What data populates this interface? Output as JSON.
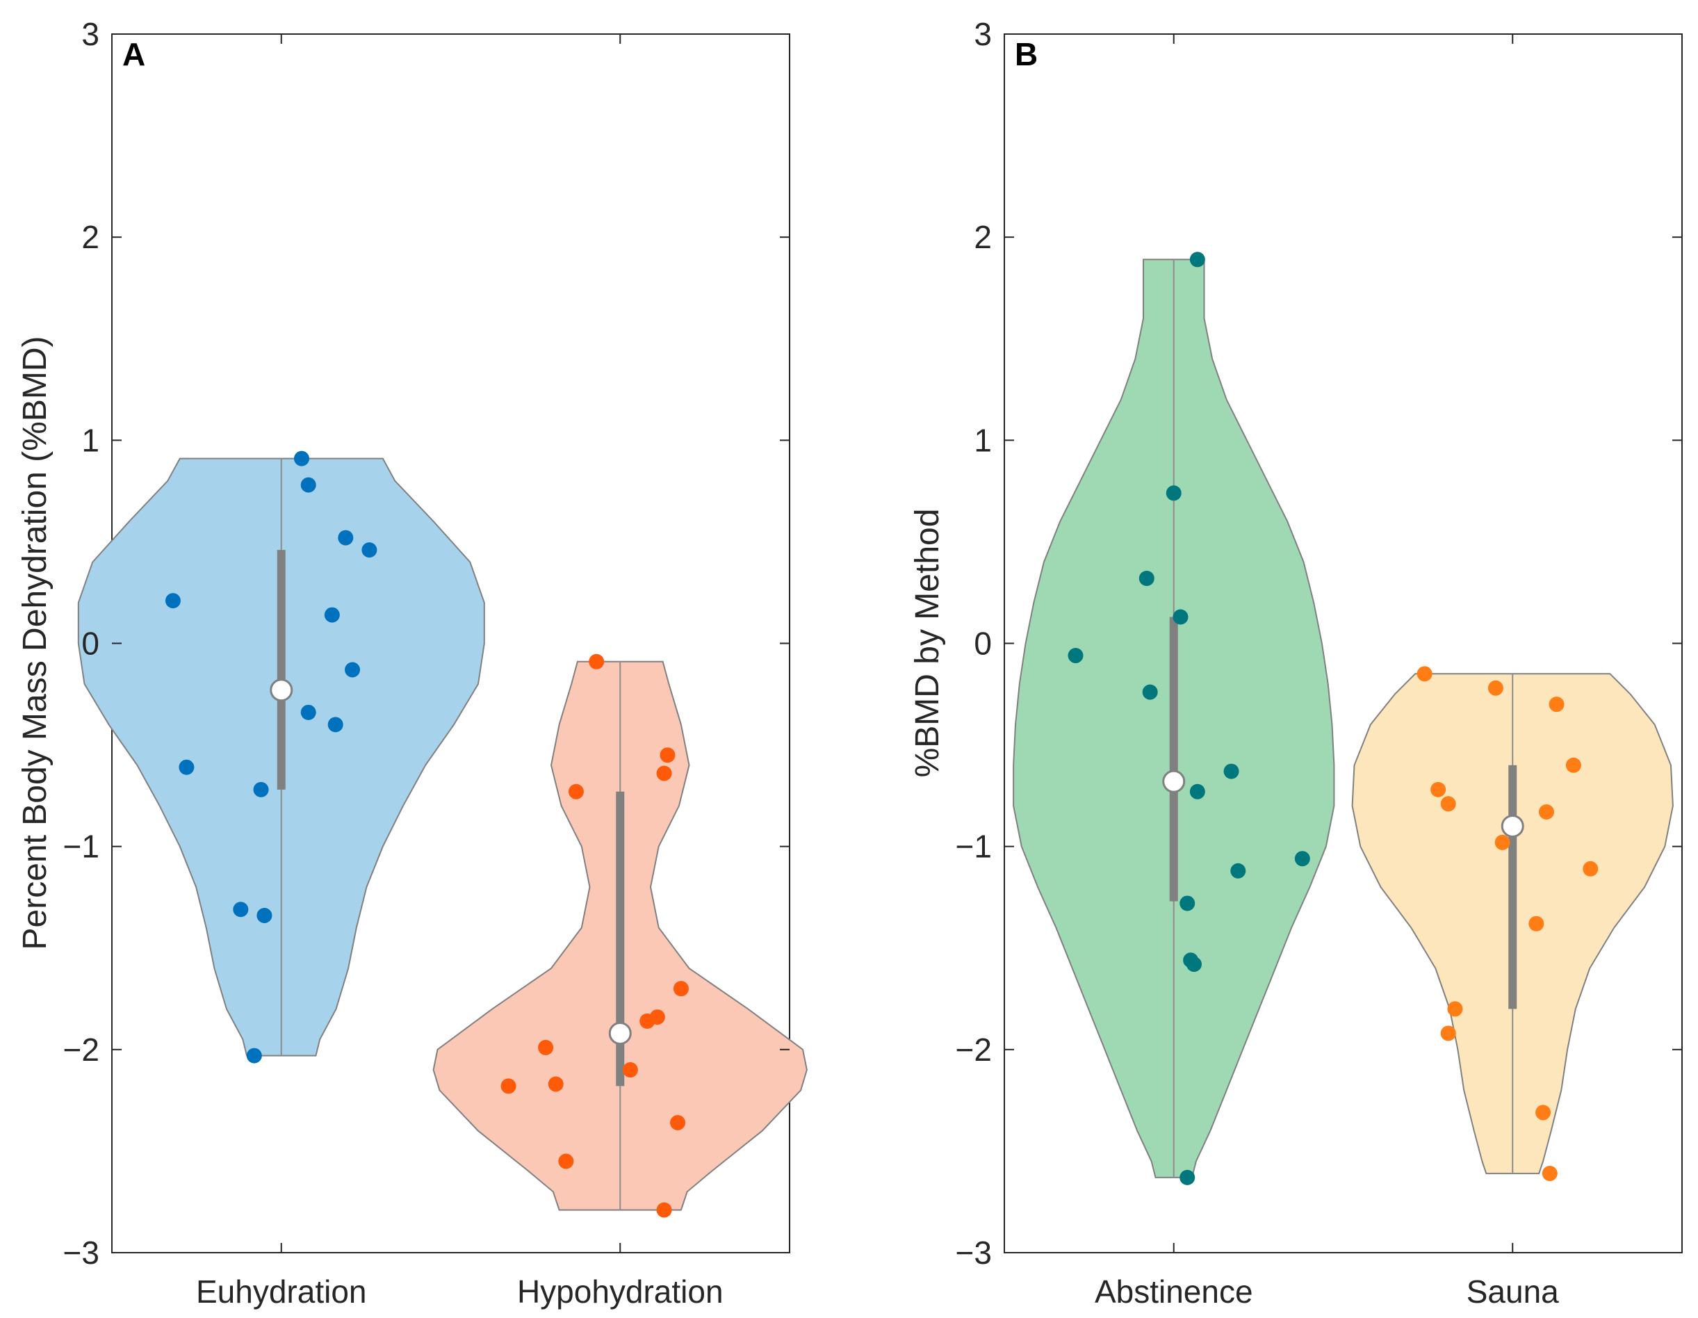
{
  "chart_data": [
    {
      "type": "violin",
      "panel_label": "A",
      "ylabel": "Percent Body Mass Dehydration (%BMD)",
      "xlabel": "",
      "ylim": [
        -3,
        3
      ],
      "yticks": [
        -3,
        -2,
        -1,
        0,
        1,
        2,
        3
      ],
      "ytick_labels": [
        "−3",
        "−2",
        "−1",
        "0",
        "1",
        "2",
        "3"
      ],
      "categories": [
        "Euhydration",
        "Hypohydration"
      ],
      "series": [
        {
          "name": "Euhydration",
          "fill": "#a6d2ec",
          "point_color": "#0072bd",
          "median": -0.23,
          "q1": -0.72,
          "q3": 0.46,
          "min": -2.03,
          "max": 0.91,
          "density": [
            [
              0.91,
              0.5
            ],
            [
              0.8,
              0.56
            ],
            [
              0.6,
              0.75
            ],
            [
              0.4,
              0.93
            ],
            [
              0.2,
              1.0
            ],
            [
              0.0,
              1.0
            ],
            [
              -0.2,
              0.97
            ],
            [
              -0.4,
              0.85
            ],
            [
              -0.6,
              0.71
            ],
            [
              -0.8,
              0.6
            ],
            [
              -1.0,
              0.5
            ],
            [
              -1.2,
              0.42
            ],
            [
              -1.4,
              0.37
            ],
            [
              -1.6,
              0.33
            ],
            [
              -1.8,
              0.27
            ],
            [
              -1.95,
              0.19
            ],
            [
              -2.03,
              0.17
            ]
          ],
          "points": [
            [
              0.06,
              0.91
            ],
            [
              0.08,
              0.78
            ],
            [
              0.19,
              0.52
            ],
            [
              0.26,
              0.46
            ],
            [
              -0.32,
              0.21
            ],
            [
              0.15,
              0.14
            ],
            [
              0.21,
              -0.13
            ],
            [
              0.08,
              -0.34
            ],
            [
              0.16,
              -0.4
            ],
            [
              -0.28,
              -0.61
            ],
            [
              -0.06,
              -0.72
            ],
            [
              -0.12,
              -1.31
            ],
            [
              -0.05,
              -1.34
            ],
            [
              -0.08,
              -2.03
            ]
          ]
        },
        {
          "name": "Hypohydration",
          "fill": "#fbc8b6",
          "point_color": "#ff5a0a",
          "median": -1.92,
          "q1": -2.18,
          "q3": -0.73,
          "min": -2.79,
          "max": -0.09,
          "density": [
            [
              -0.09,
              0.21
            ],
            [
              -0.2,
              0.24
            ],
            [
              -0.4,
              0.3
            ],
            [
              -0.6,
              0.34
            ],
            [
              -0.8,
              0.29
            ],
            [
              -1.0,
              0.19
            ],
            [
              -1.2,
              0.15
            ],
            [
              -1.4,
              0.19
            ],
            [
              -1.6,
              0.34
            ],
            [
              -1.8,
              0.63
            ],
            [
              -2.0,
              0.9
            ],
            [
              -2.1,
              0.92
            ],
            [
              -2.2,
              0.89
            ],
            [
              -2.4,
              0.7
            ],
            [
              -2.6,
              0.45
            ],
            [
              -2.7,
              0.33
            ],
            [
              -2.79,
              0.3
            ]
          ],
          "points": [
            [
              -0.07,
              -0.09
            ],
            [
              0.14,
              -0.55
            ],
            [
              0.13,
              -0.64
            ],
            [
              -0.13,
              -0.73
            ],
            [
              0.18,
              -1.7
            ],
            [
              0.11,
              -1.84
            ],
            [
              0.08,
              -1.86
            ],
            [
              -0.22,
              -1.99
            ],
            [
              0.03,
              -2.1
            ],
            [
              -0.19,
              -2.17
            ],
            [
              -0.33,
              -2.18
            ],
            [
              0.17,
              -2.36
            ],
            [
              -0.16,
              -2.55
            ],
            [
              0.13,
              -2.79
            ]
          ]
        }
      ]
    },
    {
      "type": "violin",
      "panel_label": "B",
      "ylabel": "%BMD by Method",
      "xlabel": "",
      "ylim": [
        -3,
        3
      ],
      "yticks": [
        -3,
        -2,
        -1,
        0,
        1,
        2,
        3
      ],
      "ytick_labels": [
        "−3",
        "−2",
        "−1",
        "0",
        "1",
        "2",
        "3"
      ],
      "categories": [
        "Abstinence",
        "Sauna"
      ],
      "series": [
        {
          "name": "Abstinence",
          "fill": "#9fd9b3",
          "point_color": "#00777c",
          "median": -0.68,
          "q1": -1.27,
          "q3": 0.13,
          "min": -2.63,
          "max": 1.89,
          "density": [
            [
              1.89,
              0.15
            ],
            [
              1.8,
              0.15
            ],
            [
              1.6,
              0.15
            ],
            [
              1.4,
              0.19
            ],
            [
              1.2,
              0.26
            ],
            [
              1.0,
              0.36
            ],
            [
              0.8,
              0.46
            ],
            [
              0.6,
              0.56
            ],
            [
              0.4,
              0.64
            ],
            [
              0.2,
              0.69
            ],
            [
              0.0,
              0.73
            ],
            [
              -0.2,
              0.76
            ],
            [
              -0.4,
              0.78
            ],
            [
              -0.6,
              0.79
            ],
            [
              -0.8,
              0.79
            ],
            [
              -1.0,
              0.75
            ],
            [
              -1.2,
              0.67
            ],
            [
              -1.4,
              0.58
            ],
            [
              -1.6,
              0.5
            ],
            [
              -1.8,
              0.42
            ],
            [
              -2.0,
              0.34
            ],
            [
              -2.2,
              0.26
            ],
            [
              -2.4,
              0.18
            ],
            [
              -2.55,
              0.11
            ],
            [
              -2.63,
              0.09
            ]
          ],
          "points": [
            [
              0.07,
              1.89
            ],
            [
              0.0,
              0.74
            ],
            [
              -0.08,
              0.32
            ],
            [
              0.02,
              0.13
            ],
            [
              -0.29,
              -0.06
            ],
            [
              -0.07,
              -0.24
            ],
            [
              0.17,
              -0.63
            ],
            [
              0.07,
              -0.73
            ],
            [
              0.38,
              -1.06
            ],
            [
              0.19,
              -1.12
            ],
            [
              0.04,
              -1.28
            ],
            [
              0.05,
              -1.56
            ],
            [
              0.06,
              -1.58
            ],
            [
              0.04,
              -2.63
            ]
          ]
        },
        {
          "name": "Sauna",
          "fill": "#fde6bb",
          "point_color": "#ff7d14",
          "median": -0.9,
          "q1": -1.8,
          "q3": -0.6,
          "min": -2.61,
          "max": -0.15,
          "density": [
            [
              -0.15,
              0.48
            ],
            [
              -0.25,
              0.58
            ],
            [
              -0.4,
              0.7
            ],
            [
              -0.6,
              0.78
            ],
            [
              -0.8,
              0.79
            ],
            [
              -1.0,
              0.75
            ],
            [
              -1.2,
              0.65
            ],
            [
              -1.4,
              0.5
            ],
            [
              -1.6,
              0.38
            ],
            [
              -1.8,
              0.31
            ],
            [
              -2.0,
              0.27
            ],
            [
              -2.2,
              0.24
            ],
            [
              -2.4,
              0.19
            ],
            [
              -2.55,
              0.15
            ],
            [
              -2.61,
              0.13
            ]
          ],
          "points": [
            [
              -0.26,
              -0.15
            ],
            [
              -0.05,
              -0.22
            ],
            [
              0.13,
              -0.3
            ],
            [
              0.18,
              -0.6
            ],
            [
              -0.22,
              -0.72
            ],
            [
              -0.19,
              -0.79
            ],
            [
              0.1,
              -0.83
            ],
            [
              -0.03,
              -0.98
            ],
            [
              0.23,
              -1.11
            ],
            [
              0.07,
              -1.38
            ],
            [
              -0.17,
              -1.8
            ],
            [
              -0.19,
              -1.92
            ],
            [
              0.09,
              -2.31
            ],
            [
              0.11,
              -2.61
            ]
          ]
        }
      ]
    }
  ]
}
